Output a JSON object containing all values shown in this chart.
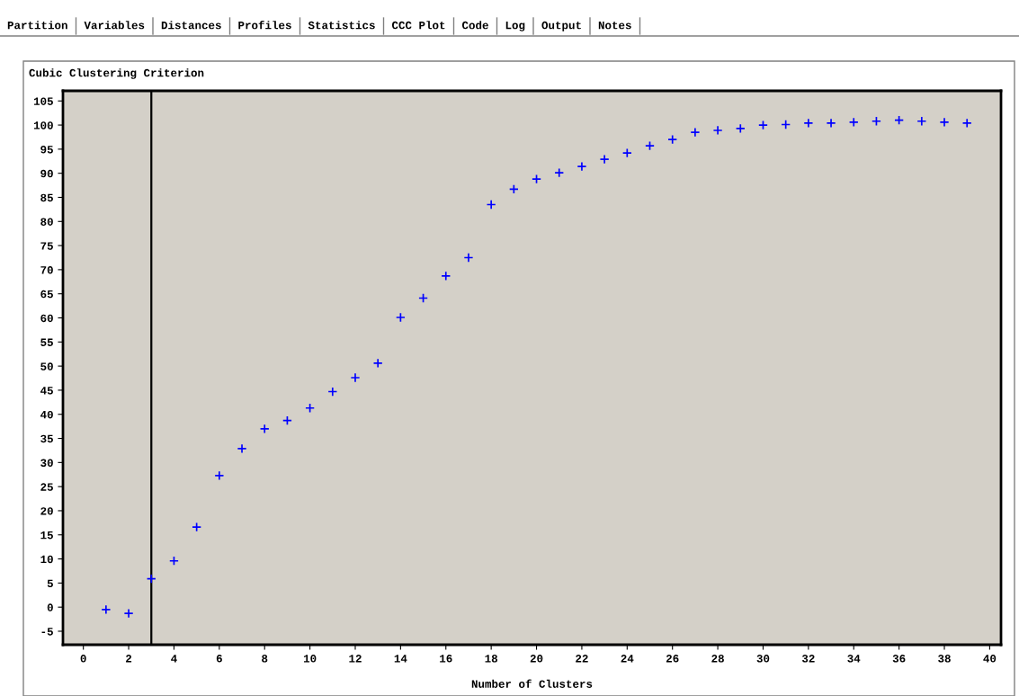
{
  "chart_data": {
    "type": "scatter",
    "title": "Cubic Clustering Criterion",
    "xlabel": "Number of Clusters",
    "annotations": [
      "Partition",
      "Variables",
      "Distances",
      "Profiles",
      "Statistics",
      "CCC Plot",
      "Code",
      "Log",
      "Output",
      "Notes"
    ],
    "series": [
      {
        "color": "#0000ff",
        "x": [
          1,
          2,
          3,
          4,
          5,
          6,
          7,
          8,
          9,
          10,
          11,
          12,
          13,
          14,
          15,
          16,
          17,
          18,
          19,
          20,
          21,
          22,
          23,
          24,
          25,
          26,
          27,
          28,
          29,
          30,
          31,
          32,
          33,
          34,
          35,
          36,
          37,
          38,
          39
        ],
        "values": [
          -0.5,
          -1.3,
          5.9,
          9.6,
          16.6,
          27.3,
          32.9,
          37.0,
          38.7,
          41.3,
          44.7,
          47.6,
          50.6,
          60.1,
          64.1,
          68.7,
          72.5,
          83.5,
          86.7,
          88.8,
          90.1,
          91.4,
          92.9,
          94.2,
          95.7,
          97.0,
          98.5,
          98.9,
          99.3,
          100.0,
          100.1,
          100.4,
          100.4,
          100.6,
          100.8,
          101.0,
          100.8,
          100.6,
          100.4
        ]
      }
    ],
    "marker": "cross",
    "ref_lines": [
      {
        "axis": "x",
        "value": 3,
        "color": "#000000"
      }
    ],
    "xlim": [
      -0.9,
      40.5
    ],
    "xticks": [
      0,
      2,
      4,
      6,
      8,
      10,
      12,
      14,
      16,
      18,
      20,
      22,
      24,
      26,
      28,
      30,
      32,
      34,
      36,
      38,
      40
    ],
    "ylim": [
      -7.8,
      107.1
    ],
    "yticks": [
      -5,
      0,
      5,
      10,
      15,
      20,
      25,
      30,
      35,
      40,
      45,
      50,
      55,
      60,
      65,
      70,
      75,
      80,
      85,
      90,
      95,
      100,
      105
    ],
    "grid": false
  }
}
